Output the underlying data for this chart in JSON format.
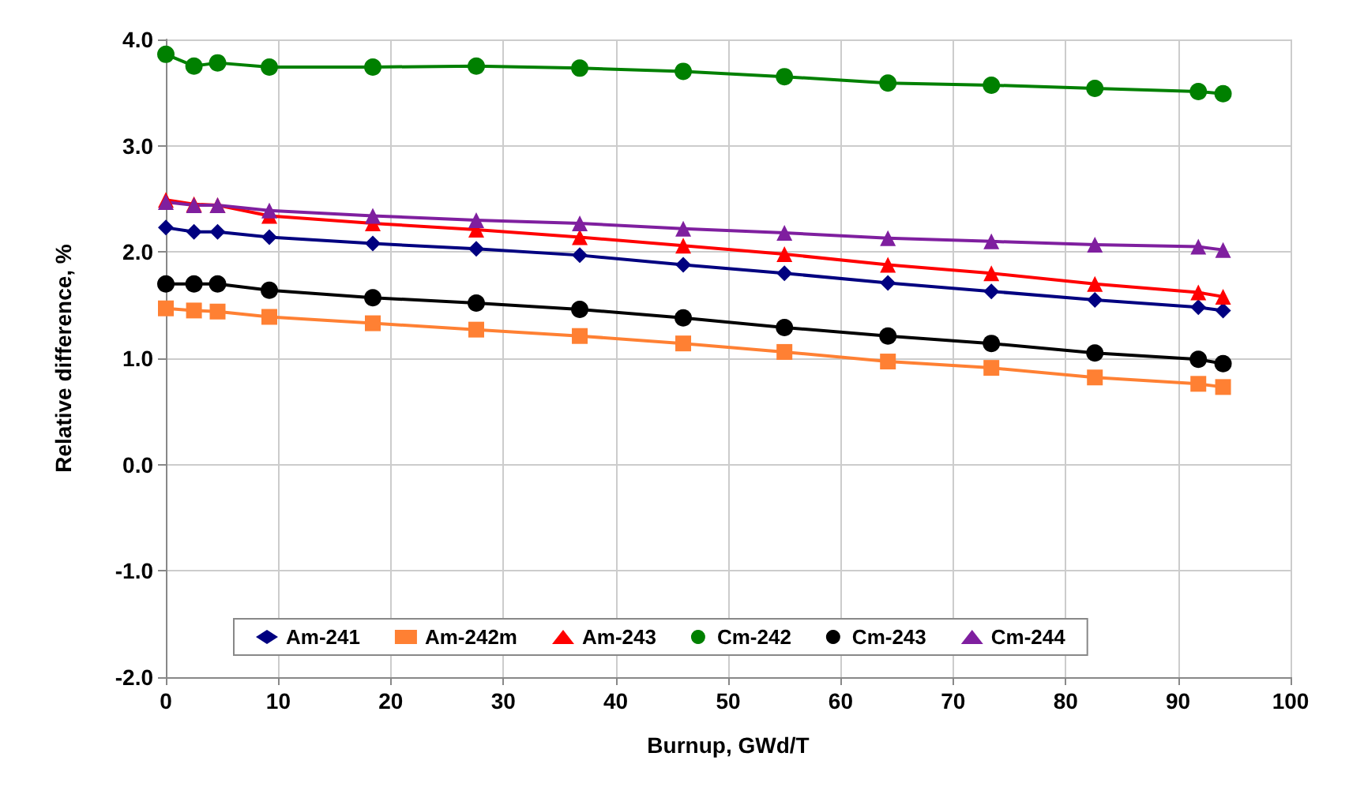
{
  "chart_data": {
    "type": "line",
    "xlabel": "Burnup, GWd/T",
    "ylabel": "Relative difference, %",
    "x": [
      0,
      2.5,
      4.6,
      9.2,
      18.4,
      27.6,
      36.8,
      46,
      55,
      64.2,
      73.4,
      82.6,
      91.8,
      94
    ],
    "xlim": [
      0,
      100
    ],
    "xticks": [
      0,
      10,
      20,
      30,
      40,
      50,
      60,
      70,
      80,
      90,
      100
    ],
    "ylim": [
      -2,
      4
    ],
    "yticks": [
      {
        "value": -2,
        "label": "-2.0"
      },
      {
        "value": -1,
        "label": "-1.0"
      },
      {
        "value": 0,
        "label": "0.0"
      },
      {
        "value": 1,
        "label": "1.0"
      },
      {
        "value": 2,
        "label": "2.0"
      },
      {
        "value": 3,
        "label": "3.0"
      },
      {
        "value": 4,
        "label": "4.0"
      }
    ],
    "grid": true,
    "legend": "bottom",
    "line_style": "solid",
    "series": [
      {
        "name": "Am-241",
        "color": "#000080",
        "marker": "diamond",
        "values": [
          2.23,
          2.19,
          2.19,
          2.14,
          2.08,
          2.03,
          1.97,
          1.88,
          1.8,
          1.71,
          1.63,
          1.55,
          1.48,
          1.45
        ]
      },
      {
        "name": "Am-242m",
        "color": "#ff8033",
        "marker": "square",
        "values": [
          1.47,
          1.45,
          1.44,
          1.39,
          1.33,
          1.27,
          1.21,
          1.14,
          1.06,
          0.97,
          0.91,
          0.82,
          0.76,
          0.73
        ]
      },
      {
        "name": "Am-243",
        "color": "#ff0000",
        "marker": "triangle",
        "values": [
          2.49,
          2.45,
          2.44,
          2.34,
          2.27,
          2.21,
          2.14,
          2.06,
          1.98,
          1.88,
          1.8,
          1.7,
          1.62,
          1.58
        ]
      },
      {
        "name": "Cm-242",
        "color": "#008000",
        "marker": "circle",
        "values": [
          3.86,
          3.75,
          3.78,
          3.74,
          3.74,
          3.75,
          3.73,
          3.7,
          3.65,
          3.59,
          3.57,
          3.54,
          3.51,
          3.49
        ]
      },
      {
        "name": "Cm-243",
        "color": "#000000",
        "marker": "circle",
        "values": [
          1.7,
          1.7,
          1.7,
          1.64,
          1.57,
          1.52,
          1.46,
          1.38,
          1.29,
          1.21,
          1.14,
          1.05,
          0.99,
          0.95
        ]
      },
      {
        "name": "Cm-244",
        "color": "#7f1f9f",
        "marker": "triangle",
        "values": [
          2.47,
          2.44,
          2.44,
          2.39,
          2.34,
          2.3,
          2.27,
          2.22,
          2.18,
          2.13,
          2.1,
          2.07,
          2.05,
          2.02
        ]
      }
    ]
  }
}
